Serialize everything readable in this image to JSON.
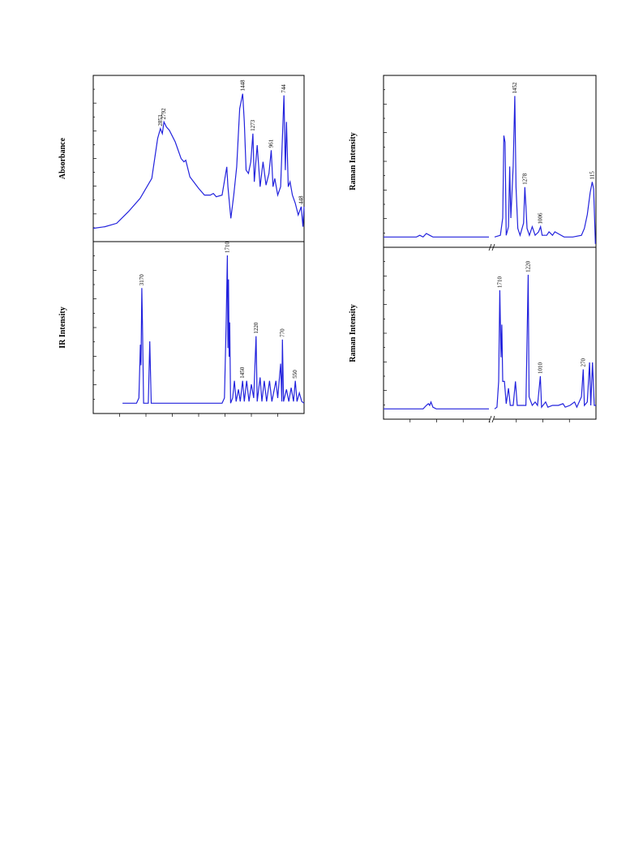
{
  "chart_data": [
    {
      "type": "line",
      "ylabel": "Absorbance",
      "color": "#2222dd",
      "xlim": [
        4000,
        400
      ],
      "ylim": [
        0,
        100
      ],
      "x": [
        4000,
        3800,
        3600,
        3400,
        3200,
        3000,
        2950,
        2900,
        2853,
        2820,
        2792,
        2750,
        2700,
        2600,
        2500,
        2450,
        2420,
        2350,
        2200,
        2100,
        2000,
        1950,
        1900,
        1800,
        1720,
        1700,
        1650,
        1600,
        1550,
        1500,
        1448,
        1420,
        1390,
        1350,
        1310,
        1273,
        1250,
        1200,
        1150,
        1100,
        1050,
        1000,
        961,
        930,
        900,
        850,
        800,
        760,
        744,
        720,
        700,
        670,
        640,
        600,
        550,
        500,
        448,
        420,
        400
      ],
      "values": [
        8,
        9,
        11,
        18,
        26,
        38,
        50,
        62,
        68,
        65,
        72,
        69,
        67,
        60,
        50,
        48,
        49,
        39,
        32,
        28,
        28,
        29,
        27,
        28,
        45,
        33,
        14,
        28,
        45,
        80,
        89,
        72,
        43,
        41,
        48,
        65,
        36,
        58,
        33,
        48,
        34,
        41,
        55,
        33,
        38,
        28,
        33,
        72,
        88,
        43,
        72,
        33,
        36,
        28,
        23,
        16,
        21,
        9,
        21
      ],
      "peaks": [
        2853,
        2792,
        1448,
        1273,
        961,
        744,
        448
      ]
    },
    {
      "type": "line",
      "ylabel": "IR Intensity",
      "color": "#2222dd",
      "xlim": [
        4000,
        400
      ],
      "ylim": [
        0,
        100
      ],
      "x": [
        3500,
        3260,
        3220,
        3195,
        3185,
        3170,
        3160,
        3140,
        3060,
        3035,
        3010,
        1800,
        1760,
        1730,
        1710,
        1700,
        1690,
        1680,
        1670,
        1655,
        1620,
        1590,
        1560,
        1520,
        1490,
        1450,
        1420,
        1380,
        1340,
        1300,
        1260,
        1220,
        1200,
        1150,
        1120,
        1080,
        1040,
        990,
        950,
        880,
        850,
        800,
        780,
        770,
        750,
        700,
        660,
        620,
        580,
        550,
        520,
        480,
        440,
        400
      ],
      "values": [
        6,
        6,
        9,
        40,
        28,
        73,
        52,
        6,
        6,
        42,
        6,
        6,
        9,
        52,
        92,
        38,
        78,
        33,
        53,
        6,
        9,
        19,
        7,
        14,
        7,
        19,
        7,
        19,
        7,
        17,
        9,
        45,
        7,
        21,
        7,
        19,
        7,
        19,
        7,
        19,
        9,
        29,
        7,
        43,
        7,
        14,
        7,
        15,
        7,
        19,
        7,
        12,
        7,
        6
      ],
      "peaks": [
        3170,
        1710,
        1450,
        1220,
        770,
        550
      ]
    },
    {
      "type": "line",
      "ylabel": "Raman Intensity",
      "color": "#2222dd",
      "xlim": [
        3600,
        50
      ],
      "axis_break": [
        2000,
        1800
      ],
      "ylim": [
        0,
        100
      ],
      "x": [
        3600,
        3100,
        3050,
        3000,
        2950,
        2900,
        2850,
        2000,
        1900,
        1800,
        1700,
        1660,
        1640,
        1620,
        1600,
        1560,
        1540,
        1520,
        1480,
        1452,
        1430,
        1400,
        1360,
        1300,
        1278,
        1260,
        1240,
        1200,
        1150,
        1100,
        1040,
        1006,
        980,
        900,
        860,
        800,
        760,
        600,
        450,
        300,
        250,
        200,
        150,
        115,
        90,
        60
      ],
      "values": [
        6,
        6,
        7,
        6,
        8,
        7,
        6,
        6,
        null,
        6,
        7,
        17,
        65,
        61,
        7,
        12,
        47,
        17,
        47,
        88,
        35,
        11,
        7,
        14,
        35,
        24,
        11,
        7,
        12,
        7,
        9,
        12,
        7,
        7,
        9,
        7,
        9,
        6,
        6,
        7,
        11,
        19,
        32,
        38,
        34,
        2
      ],
      "peaks": [
        1452,
        1278,
        1006,
        115
      ]
    },
    {
      "type": "line",
      "ylabel": "Raman Intensity",
      "color": "#2222dd",
      "xlim": [
        3600,
        50
      ],
      "axis_break": [
        2000,
        1800
      ],
      "ylim": [
        0,
        100
      ],
      "x": [
        3600,
        3000,
        2950,
        2920,
        2900,
        2880,
        2850,
        2800,
        2000,
        1900,
        1800,
        1760,
        1730,
        1710,
        1690,
        1675,
        1660,
        1630,
        1600,
        1560,
        1530,
        1480,
        1440,
        1410,
        1260,
        1220,
        1205,
        1150,
        1100,
        1060,
        1010,
        990,
        920,
        880,
        800,
        700,
        620,
        580,
        500,
        420,
        380,
        300,
        270,
        250,
        200,
        160,
        140,
        110,
        80,
        50
      ],
      "values": [
        6,
        6,
        8,
        9,
        8,
        10,
        7,
        6,
        6,
        null,
        6,
        7,
        22,
        75,
        36,
        55,
        22,
        22,
        9,
        18,
        8,
        8,
        22,
        8,
        8,
        84,
        13,
        8,
        10,
        8,
        25,
        7,
        10,
        7,
        8,
        8,
        9,
        7,
        8,
        10,
        7,
        13,
        29,
        8,
        10,
        33,
        8,
        33,
        8,
        8
      ],
      "peaks": [
        1710,
        1220,
        1010,
        270
      ]
    }
  ]
}
